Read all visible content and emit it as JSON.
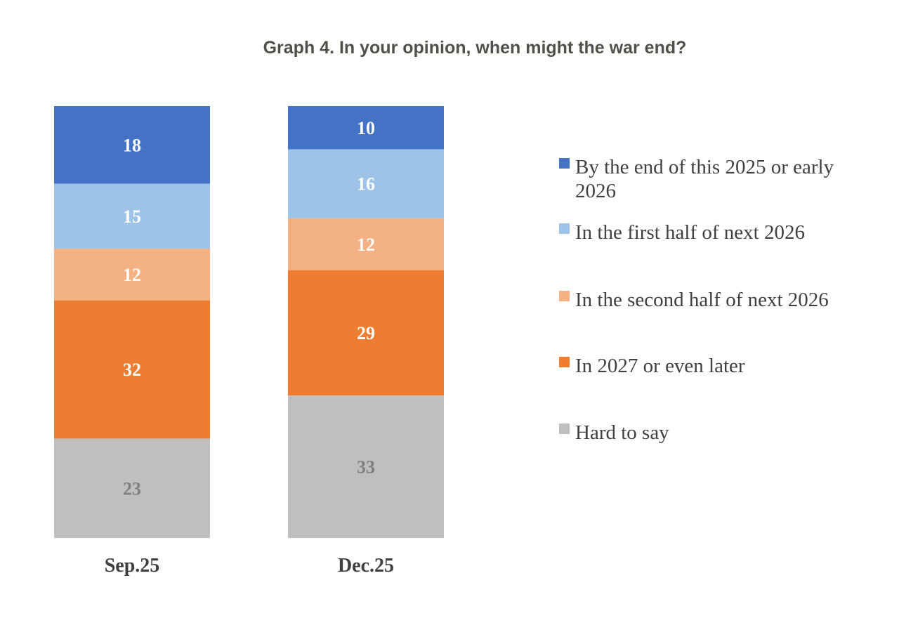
{
  "chart_data": {
    "type": "bar",
    "stacked": true,
    "orientation": "vertical",
    "title": "Graph 4. In your opinion, when might the war end?",
    "categories": [
      "Sep.25",
      "Dec.25"
    ],
    "legend_position": "right",
    "series": [
      {
        "name": "By the end of this 2025 or early 2026",
        "legend_lines": [
          "By the end of this 2025 or early",
          "2026"
        ],
        "color": "#4472c4",
        "label_color": "#ffffff",
        "values": [
          18,
          10
        ]
      },
      {
        "name": "In the first half of next 2026",
        "legend_lines": [
          "In the first half of next 2026"
        ],
        "color": "#9dc3e6",
        "label_color": "#ffffff",
        "values": [
          15,
          16
        ]
      },
      {
        "name": "In the second half of next 2026",
        "legend_lines": [
          "In the second half of next 2026"
        ],
        "color": "#f4b183",
        "label_color": "#ffffff",
        "values": [
          12,
          12
        ]
      },
      {
        "name": "In 2027 or even later",
        "legend_lines": [
          "In 2027 or even later"
        ],
        "color": "#ed7d31",
        "label_color": "#ffffff",
        "values": [
          32,
          29
        ]
      },
      {
        "name": "Hard to say",
        "legend_lines": [
          "Hard to say"
        ],
        "color": "#bfbfbf",
        "label_color": "#7f7f7f",
        "values": [
          23,
          33
        ]
      }
    ]
  }
}
